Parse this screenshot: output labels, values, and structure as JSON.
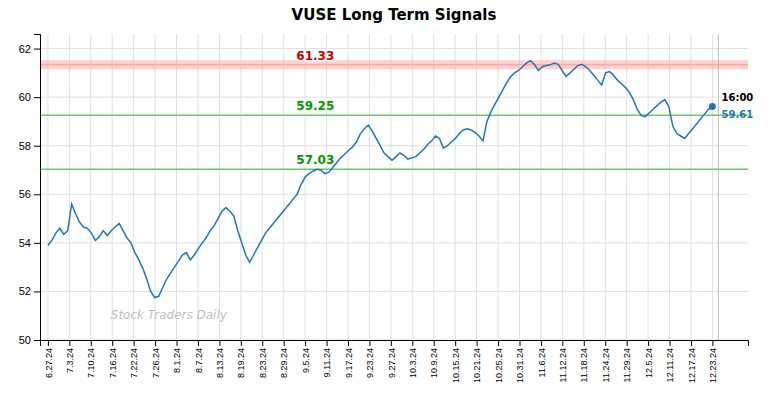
{
  "chart_data": {
    "type": "line",
    "title": "VUSE Long Term Signals",
    "watermark": "Stock Traders Daily",
    "values": [
      53.9,
      54.1,
      54.4,
      54.6,
      54.35,
      54.5,
      55.6,
      55.2,
      54.85,
      54.65,
      54.6,
      54.4,
      54.1,
      54.25,
      54.5,
      54.3,
      54.5,
      54.65,
      54.8,
      54.5,
      54.2,
      54.0,
      53.6,
      53.3,
      52.95,
      52.5,
      52.0,
      51.75,
      51.8,
      52.15,
      52.5,
      52.75,
      53.0,
      53.25,
      53.5,
      53.6,
      53.3,
      53.5,
      53.75,
      54.0,
      54.2,
      54.5,
      54.7,
      55.0,
      55.3,
      55.45,
      55.3,
      55.1,
      54.5,
      54.0,
      53.5,
      53.2,
      53.5,
      53.8,
      54.1,
      54.4,
      54.6,
      54.8,
      55.0,
      55.2,
      55.4,
      55.6,
      55.8,
      56.0,
      56.4,
      56.7,
      56.85,
      56.95,
      57.03,
      57.0,
      56.85,
      56.9,
      57.1,
      57.3,
      57.5,
      57.65,
      57.8,
      57.95,
      58.15,
      58.5,
      58.7,
      58.85,
      58.6,
      58.3,
      58.0,
      57.7,
      57.55,
      57.4,
      57.55,
      57.7,
      57.6,
      57.45,
      57.5,
      57.55,
      57.7,
      57.85,
      58.05,
      58.2,
      58.4,
      58.3,
      57.9,
      58.0,
      58.15,
      58.3,
      58.5,
      58.65,
      58.7,
      58.65,
      58.55,
      58.4,
      58.2,
      59.0,
      59.4,
      59.7,
      60.0,
      60.3,
      60.6,
      60.85,
      61.0,
      61.1,
      61.25,
      61.4,
      61.5,
      61.35,
      61.1,
      61.25,
      61.3,
      61.33,
      61.4,
      61.35,
      61.1,
      60.85,
      61.0,
      61.15,
      61.3,
      61.35,
      61.25,
      61.1,
      60.9,
      60.7,
      60.5,
      61.0,
      61.05,
      60.9,
      60.7,
      60.55,
      60.4,
      60.2,
      59.9,
      59.5,
      59.25,
      59.2,
      59.35,
      59.5,
      59.65,
      59.8,
      59.9,
      59.6,
      58.8,
      58.5,
      58.4,
      58.3,
      58.5,
      58.7,
      58.9,
      59.1,
      59.3,
      59.5,
      59.61
    ],
    "last_price": 59.61,
    "last_time": "16:00",
    "marker": "dot",
    "reference_lines": [
      {
        "value": 61.33,
        "label": "61.33",
        "color": "#ffaaaa",
        "label_color": "#cc0000",
        "line_style": "band"
      },
      {
        "value": 59.25,
        "label": "59.25",
        "color": "#66cc66",
        "label_color": "#009900",
        "line_style": "solid"
      },
      {
        "value": 57.03,
        "label": "57.03",
        "color": "#66cc66",
        "label_color": "#009900",
        "line_style": "solid"
      }
    ],
    "xlim": [
      -2,
      177
    ],
    "xticks": [
      {
        "value": 0,
        "label": "6.27.24"
      },
      {
        "value": 5.419355,
        "label": "7.3.24"
      },
      {
        "value": 10.83871,
        "label": "7.10.24"
      },
      {
        "value": 16.258065,
        "label": "7.16.24"
      },
      {
        "value": 21.677419,
        "label": "7.22.24"
      },
      {
        "value": 27.096774,
        "label": "7.26.24"
      },
      {
        "value": 32.516129,
        "label": "8.1.24"
      },
      {
        "value": 37.935484,
        "label": "8.7.24"
      },
      {
        "value": 43.354839,
        "label": "8.13.24"
      },
      {
        "value": 48.774194,
        "label": "8.19.24"
      },
      {
        "value": 54.193548,
        "label": "8.23.24"
      },
      {
        "value": 59.612903,
        "label": "8.29.24"
      },
      {
        "value": 65.032258,
        "label": "9.5.24"
      },
      {
        "value": 70.451613,
        "label": "9.11.24"
      },
      {
        "value": 75.870968,
        "label": "9.17.24"
      },
      {
        "value": 81.290323,
        "label": "9.23.24"
      },
      {
        "value": 86.709677,
        "label": "9.27.24"
      },
      {
        "value": 92.129032,
        "label": "10.3.24"
      },
      {
        "value": 97.548387,
        "label": "10.9.24"
      },
      {
        "value": 102.967742,
        "label": "10.15.24"
      },
      {
        "value": 108.387097,
        "label": "10.21.24"
      },
      {
        "value": 113.806452,
        "label": "10.25.24"
      },
      {
        "value": 119.225806,
        "label": "10.31.24"
      },
      {
        "value": 124.645161,
        "label": "11.6.24"
      },
      {
        "value": 130.064516,
        "label": "11.12.24"
      },
      {
        "value": 135.483871,
        "label": "11.18.24"
      },
      {
        "value": 140.903226,
        "label": "11.24.24"
      },
      {
        "value": 146.322581,
        "label": "11.29.24"
      },
      {
        "value": 151.741935,
        "label": "12.5.24"
      },
      {
        "value": 157.16129,
        "label": "12.11.24"
      },
      {
        "value": 162.580645,
        "label": "12.17.24"
      },
      {
        "value": 168,
        "label": "12.23.24"
      }
    ],
    "ylim": [
      50,
      62.6
    ],
    "yticks": [
      50,
      52,
      54,
      56,
      58,
      60,
      62
    ],
    "grid": true
  }
}
